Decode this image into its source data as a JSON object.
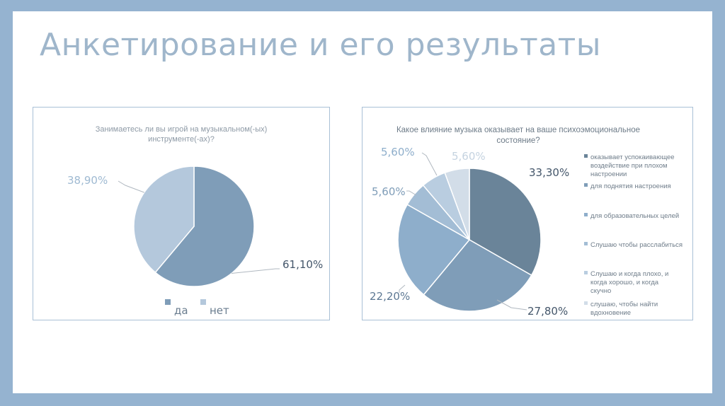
{
  "slide": {
    "title": "Анкетирование и его результаты"
  },
  "colors": {
    "frame": "#95b3d0",
    "chart1_da": "#7f9db8",
    "chart1_net": "#b4c8dc",
    "chart2_slices": [
      "#6a8499",
      "#7f9db8",
      "#8eaecb",
      "#a3bdd5",
      "#b9cde0",
      "#d2dde8"
    ]
  },
  "chart_data": [
    {
      "type": "pie",
      "title_lines": [
        "Занимаетесь ли вы игрой на музыкальном(-ых)",
        "инструменте(-ах)?"
      ],
      "categories": [
        "да",
        "нет"
      ],
      "values": [
        61.1,
        38.9
      ],
      "value_labels": [
        "61,10%",
        "38,90%"
      ],
      "legend_position": "bottom"
    },
    {
      "type": "pie",
      "title_lines": [
        "Какое влияние музыка оказывает на ваше психоэмоциональное",
        "состояние?"
      ],
      "categories": [
        "оказывает успокаивающее воздействие при плохом настроении",
        "для поднятия настроения",
        "для образовательных целей",
        "Слушаю чтобы расслабиться",
        "Слушаю и когда плохо, и когда хорошо, и когда скучно",
        "слушаю, чтобы найти вдохновение"
      ],
      "legend_lines": [
        [
          "оказывает успокаивающее",
          "воздействие при плохом",
          "настроении"
        ],
        [
          "для поднятия настроения"
        ],
        [
          "для образовательных целей"
        ],
        [
          "Слушаю чтобы расслабиться"
        ],
        [
          "Слушаю и когда плохо, и",
          "когда хорошо, и когда",
          "скучно"
        ],
        [
          "слушаю, чтобы найти",
          "вдохновение"
        ]
      ],
      "values": [
        33.3,
        27.8,
        22.2,
        5.6,
        5.6,
        5.6
      ],
      "value_labels": [
        "33,30%",
        "27,80%",
        "22,20%",
        "5,60%",
        "5,60%",
        "5,60%"
      ],
      "legend_position": "right"
    }
  ]
}
